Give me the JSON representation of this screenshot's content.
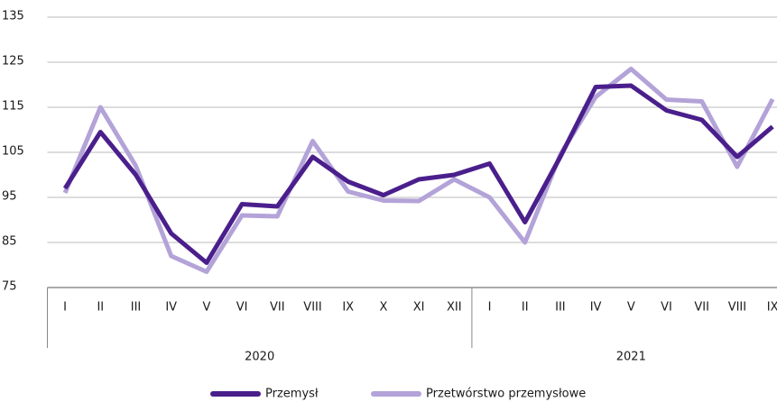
{
  "chart_data": {
    "type": "line",
    "categories": [
      "I",
      "II",
      "III",
      "IV",
      "V",
      "VI",
      "VII",
      "VIII",
      "IX",
      "X",
      "XI",
      "XII",
      "I",
      "II",
      "III",
      "IV",
      "V",
      "VI",
      "VII",
      "VIII",
      "IX"
    ],
    "groups": [
      {
        "label": "2020",
        "span": 12
      },
      {
        "label": "2021",
        "span": 9
      }
    ],
    "series": [
      {
        "name": "Przemysł",
        "color": "#4a1f8c",
        "values": [
          97,
          109.5,
          100,
          87,
          80.5,
          93.5,
          93,
          104,
          98.5,
          95.5,
          99,
          100,
          102.5,
          89.5,
          104,
          119.5,
          119.8,
          114.3,
          112.2,
          104,
          110.7
        ]
      },
      {
        "name": "Przetwórstwo przemysłowe",
        "color": "#b3a3d8",
        "values": [
          96,
          115,
          102,
          82,
          78.5,
          91,
          90.8,
          107.5,
          96.3,
          94.3,
          94.2,
          99,
          95,
          85,
          104.5,
          117.3,
          123.5,
          116.7,
          116.3,
          101.8,
          116.8
        ]
      }
    ],
    "ylim": [
      75,
      135
    ],
    "yticks": [
      75,
      85,
      95,
      105,
      115,
      125,
      135
    ],
    "grid": true,
    "legend": "bottom"
  }
}
